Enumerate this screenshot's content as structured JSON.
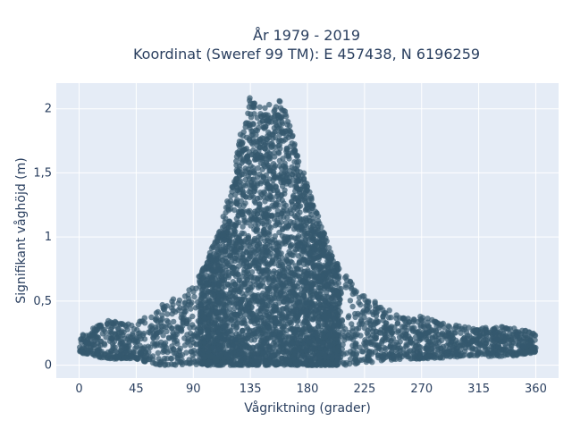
{
  "chart_data": {
    "type": "scatter",
    "title_line1": "År 1979 - 2019",
    "title_line2": "Koordinat (Sweref 99 TM): E 457438, N 6196259",
    "xlabel": "Vågriktning (grader)",
    "ylabel": "Signifikant våghöjd (m)",
    "xlim": [
      -18,
      378
    ],
    "ylim": [
      -0.1,
      2.2
    ],
    "x_ticks": [
      0,
      45,
      90,
      135,
      180,
      225,
      270,
      315,
      360
    ],
    "x_tick_labels": [
      "0",
      "45",
      "90",
      "135",
      "180",
      "225",
      "270",
      "315",
      "360"
    ],
    "y_ticks": [
      0,
      0.5,
      1,
      1.5,
      2
    ],
    "y_tick_labels": [
      "0",
      "0,5",
      "1",
      "1,5",
      "2"
    ],
    "grid": true,
    "plot_background": "#e5ecf6",
    "marker_color": "#34586e",
    "envelope": {
      "x": [
        0,
        20,
        45,
        60,
        75,
        90,
        100,
        110,
        120,
        128,
        135,
        140,
        145,
        150,
        155,
        160,
        165,
        170,
        180,
        190,
        200,
        210,
        225,
        240,
        255,
        270,
        290,
        315,
        340,
        360
      ],
      "upper": [
        0.22,
        0.35,
        0.32,
        0.45,
        0.52,
        0.62,
        0.8,
        1.05,
        1.4,
        1.85,
        2.1,
        2.08,
        2.0,
        2.05,
        2.1,
        2.05,
        1.9,
        1.75,
        1.4,
        1.12,
        0.85,
        0.7,
        0.55,
        0.45,
        0.38,
        0.38,
        0.32,
        0.3,
        0.3,
        0.25
      ],
      "lower": [
        0.1,
        0.05,
        0.05,
        0.0,
        0.0,
        0.0,
        0.0,
        0.0,
        0.0,
        0.0,
        0.0,
        0.0,
        0.0,
        0.0,
        0.0,
        0.0,
        0.0,
        0.0,
        0.0,
        0.0,
        0.0,
        0.0,
        0.02,
        0.03,
        0.05,
        0.05,
        0.06,
        0.07,
        0.07,
        0.1
      ]
    }
  }
}
